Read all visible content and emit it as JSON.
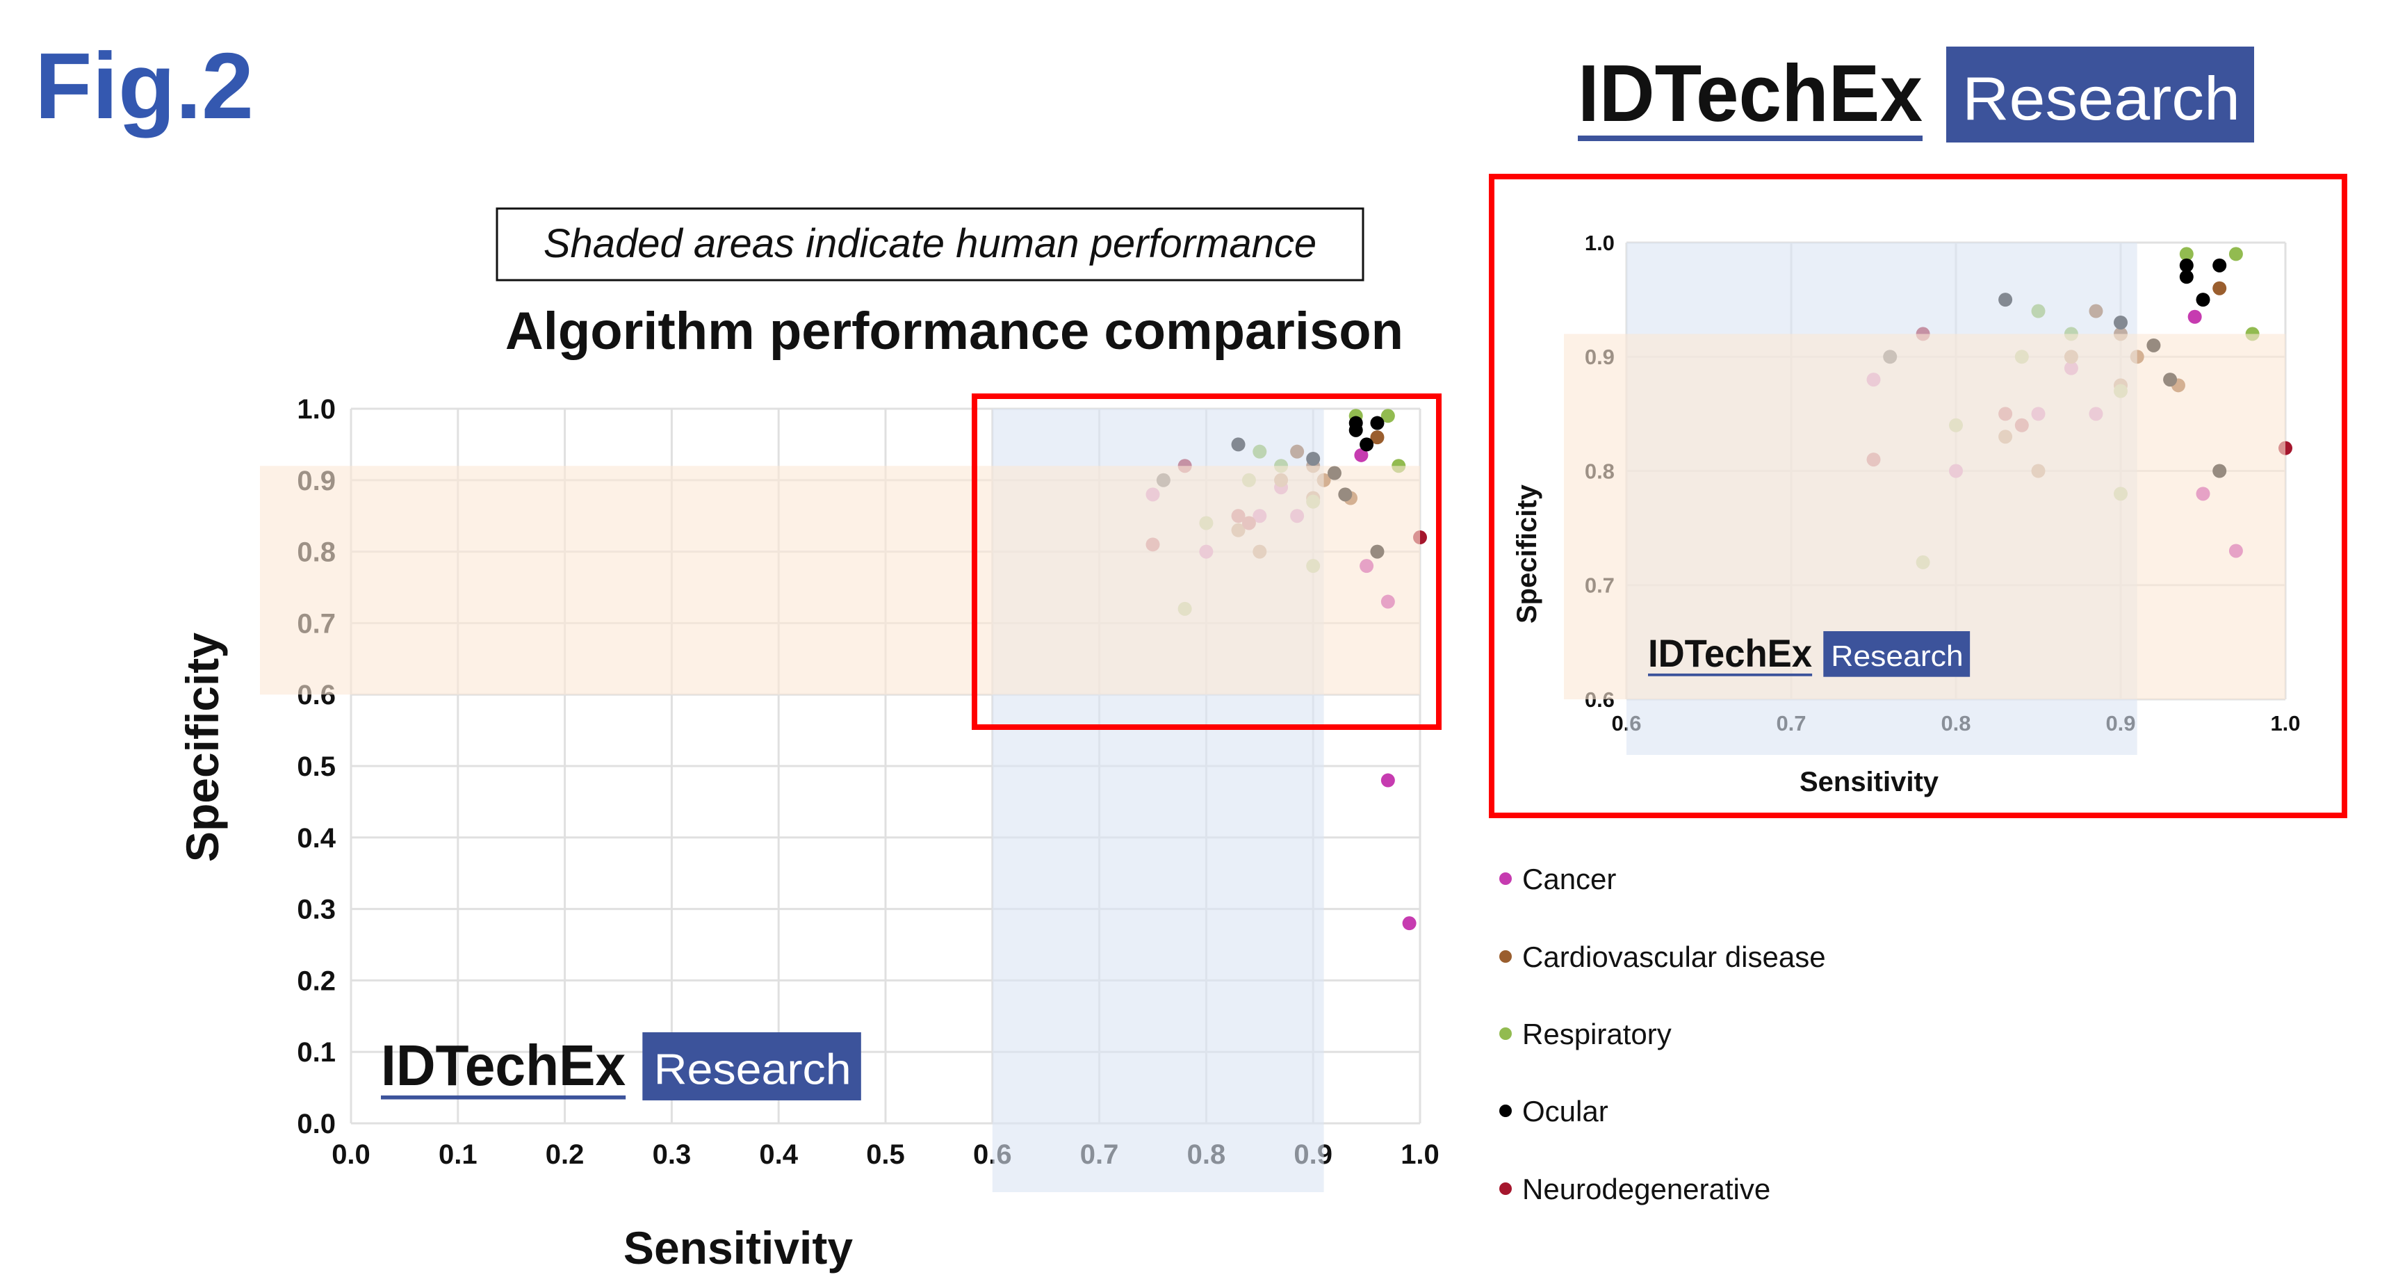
{
  "figure_label": "Fig.2",
  "logo": {
    "brand": "IDTechEx",
    "sub": "Research"
  },
  "caption": "Shaded areas indicate human performance",
  "colors": {
    "fig": "#3458b0",
    "logo_blue": "#3c539b",
    "highlight": "#ff0000",
    "human_sens": "#dbe4f3",
    "human_spec": "#fbe7d6"
  },
  "chart_data": {
    "type": "scatter",
    "title": "Algorithm performance comparison",
    "xlabel": "Sensitivity",
    "ylabel": "Specificity",
    "xlim": [
      0,
      1.0
    ],
    "ylim": [
      0,
      1.0
    ],
    "xticks": [
      "0.0",
      "0.1",
      "0.2",
      "0.3",
      "0.4",
      "0.5",
      "0.6",
      "0.7",
      "0.8",
      "0.9",
      "1.0"
    ],
    "yticks": [
      "0.0",
      "0.1",
      "0.2",
      "0.3",
      "0.4",
      "0.5",
      "0.6",
      "0.7",
      "0.8",
      "0.9",
      "1.0"
    ],
    "grid": true,
    "human_performance": {
      "sensitivity_range": [
        0.6,
        0.91
      ],
      "specificity_range": [
        0.6,
        0.92
      ]
    },
    "legend_position": "right",
    "series": [
      {
        "name": "Cancer",
        "color": "#c63bb0",
        "points": [
          [
            0.945,
            0.935
          ],
          [
            0.87,
            0.89
          ],
          [
            0.75,
            0.88
          ],
          [
            0.85,
            0.85
          ],
          [
            0.885,
            0.85
          ],
          [
            0.8,
            0.8
          ],
          [
            0.95,
            0.78
          ],
          [
            0.97,
            0.73
          ],
          [
            0.97,
            0.48
          ],
          [
            0.99,
            0.28
          ]
        ]
      },
      {
        "name": "Cardiovascular disease",
        "color": "#9a5e2e",
        "points": [
          [
            0.96,
            0.96
          ],
          [
            0.885,
            0.94
          ],
          [
            0.9,
            0.92
          ],
          [
            0.87,
            0.9
          ],
          [
            0.91,
            0.9
          ],
          [
            0.9,
            0.875
          ],
          [
            0.935,
            0.875
          ],
          [
            0.83,
            0.83
          ],
          [
            0.85,
            0.8
          ]
        ]
      },
      {
        "name": "Respiratory",
        "color": "#92bb50",
        "points": [
          [
            0.94,
            0.99
          ],
          [
            0.97,
            0.99
          ],
          [
            0.85,
            0.94
          ],
          [
            0.87,
            0.92
          ],
          [
            0.98,
            0.92
          ],
          [
            0.84,
            0.9
          ],
          [
            0.9,
            0.87
          ],
          [
            0.8,
            0.84
          ],
          [
            0.9,
            0.78
          ],
          [
            0.78,
            0.72
          ]
        ]
      },
      {
        "name": "Ocular",
        "color": "#000000",
        "points": [
          [
            0.94,
            0.98
          ],
          [
            0.94,
            0.97
          ],
          [
            0.96,
            0.98
          ],
          [
            0.95,
            0.95
          ],
          [
            0.83,
            0.95
          ],
          [
            0.9,
            0.93
          ],
          [
            0.92,
            0.91
          ],
          [
            0.76,
            0.9
          ],
          [
            0.93,
            0.88
          ],
          [
            0.96,
            0.8
          ]
        ]
      },
      {
        "name": "Neurodegenerative",
        "color": "#a5162d",
        "points": [
          [
            0.78,
            0.92
          ],
          [
            0.83,
            0.85
          ],
          [
            0.84,
            0.84
          ],
          [
            0.75,
            0.81
          ],
          [
            1.0,
            0.82
          ]
        ]
      }
    ],
    "inset": {
      "xlim": [
        0.6,
        1.0
      ],
      "ylim": [
        0.6,
        1.0
      ],
      "xticks": [
        "0.6",
        "0.7",
        "0.8",
        "0.9",
        "1.0"
      ],
      "yticks": [
        "0.6",
        "0.7",
        "0.8",
        "0.9",
        "1.0"
      ],
      "xlabel": "Sensitivity",
      "ylabel": "Specificity"
    }
  }
}
